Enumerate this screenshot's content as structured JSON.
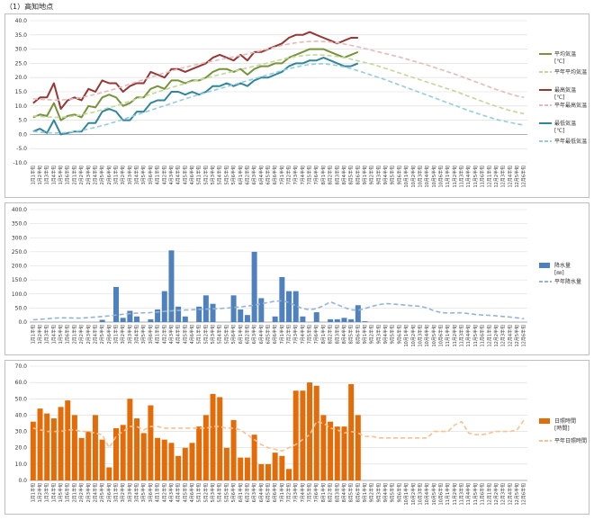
{
  "page": {
    "title": "（1）高知地点"
  },
  "xlabels": [
    "1月1半旬",
    "1月2半旬",
    "1月3半旬",
    "1月4半旬",
    "1月5半旬",
    "1月6半旬",
    "2月1半旬",
    "2月2半旬",
    "2月3半旬",
    "2月4半旬",
    "2月5半旬",
    "2月6半旬",
    "3月1半旬",
    "3月2半旬",
    "3月3半旬",
    "3月4半旬",
    "3月5半旬",
    "3月6半旬",
    "4月1半旬",
    "4月2半旬",
    "4月3半旬",
    "4月4半旬",
    "4月5半旬",
    "4月6半旬",
    "5月1半旬",
    "5月2半旬",
    "5月3半旬",
    "5月4半旬",
    "5月5半旬",
    "5月6半旬",
    "6月1半旬",
    "6月2半旬",
    "6月3半旬",
    "6月4半旬",
    "6月5半旬",
    "6月6半旬",
    "7月1半旬",
    "7月2半旬",
    "7月3半旬",
    "7月4半旬",
    "7月5半旬",
    "7月6半旬",
    "8月1半旬",
    "8月2半旬",
    "8月3半旬",
    "8月4半旬",
    "8月5半旬",
    "8月6半旬",
    "9月1半旬",
    "9月2半旬",
    "9月3半旬",
    "9月4半旬",
    "9月5半旬",
    "9月6半旬",
    "10月1半旬",
    "10月2半旬",
    "10月3半旬",
    "10月4半旬",
    "10月5半旬",
    "10月6半旬",
    "11月1半旬",
    "11月2半旬",
    "11月3半旬",
    "11月4半旬",
    "11月5半旬",
    "11月6半旬",
    "12月1半旬",
    "12月2半旬",
    "12月3半旬",
    "12月4半旬",
    "12月5半旬",
    "12月6半旬"
  ],
  "chart_data": [
    {
      "type": "line",
      "ylim": [
        -10,
        40
      ],
      "yticks": [
        "40.0",
        "35.0",
        "30.0",
        "25.0",
        "20.0",
        "15.0",
        "10.0",
        "5.0",
        "0.0",
        "-5.0",
        "-10.0"
      ],
      "series": [
        {
          "name": "平均気温\n[℃]",
          "style": "solid",
          "color": "#77933c",
          "values": [
            6,
            7,
            6.5,
            11,
            5,
            6.5,
            7,
            6,
            10,
            9.5,
            13,
            14,
            13,
            10,
            11,
            13,
            13,
            16,
            17,
            16,
            19,
            19,
            18,
            19,
            19,
            20,
            22,
            23,
            23,
            22,
            23,
            21,
            23,
            24,
            24,
            25,
            25,
            27,
            28,
            29,
            30,
            30,
            30,
            29,
            28,
            27,
            28,
            29,
            null,
            null,
            null,
            null,
            null,
            null,
            null,
            null,
            null,
            null,
            null,
            null,
            null,
            null,
            null,
            null,
            null,
            null,
            null,
            null,
            null,
            null,
            null,
            null
          ]
        },
        {
          "name": "平年平均気温",
          "style": "dash",
          "color": "#c3d69b",
          "values": [
            6.5,
            6.3,
            6.1,
            6,
            6,
            6.2,
            6.5,
            6.9,
            7.4,
            8,
            8.7,
            9.4,
            10.1,
            10.9,
            11.7,
            12.5,
            13.3,
            14.1,
            14.9,
            15.7,
            16.5,
            17.2,
            17.9,
            18.6,
            19.2,
            19.8,
            20.4,
            21,
            21.6,
            22.2,
            22.8,
            23.4,
            24,
            24.6,
            25.2,
            25.8,
            26.4,
            27,
            27.4,
            27.7,
            27.9,
            28,
            27.9,
            27.7,
            27.4,
            27,
            26.5,
            25.9,
            25.3,
            24.7,
            24,
            23.2,
            22.4,
            21.6,
            20.8,
            20,
            19.2,
            18.4,
            17.6,
            16.8,
            16,
            15.2,
            14.3,
            13.4,
            12.5,
            11.6,
            10.7,
            9.9,
            9.1,
            8.4,
            7.8,
            7.3
          ]
        },
        {
          "name": "最高気温\n[℃]",
          "style": "solid",
          "color": "#953735",
          "values": [
            11,
            13,
            13,
            18,
            9,
            12,
            13,
            12,
            16,
            15,
            19,
            18,
            18,
            15,
            17,
            18,
            18,
            22,
            21,
            20,
            23,
            23,
            22,
            23,
            24,
            25,
            27,
            28,
            27,
            26,
            28,
            26,
            29,
            29,
            30,
            31,
            32,
            34,
            35,
            35,
            36,
            35,
            34,
            33,
            32,
            33,
            34,
            34,
            null,
            null,
            null,
            null,
            null,
            null,
            null,
            null,
            null,
            null,
            null,
            null,
            null,
            null,
            null,
            null,
            null,
            null,
            null,
            null,
            null,
            null,
            null,
            null
          ]
        },
        {
          "name": "平年最高気温",
          "style": "dash",
          "color": "#e6b9b8",
          "values": [
            12.5,
            12.3,
            12.2,
            12.1,
            12.1,
            12.3,
            12.6,
            13,
            13.5,
            14.1,
            14.7,
            15.4,
            16.1,
            16.9,
            17.7,
            18.5,
            19.3,
            20.1,
            20.9,
            21.6,
            22.3,
            23,
            23.6,
            24.2,
            24.8,
            25.3,
            25.8,
            26.3,
            26.8,
            27.3,
            27.8,
            28.3,
            28.9,
            29.5,
            30.1,
            30.7,
            31.3,
            31.8,
            32.2,
            32.5,
            32.7,
            32.8,
            32.7,
            32.5,
            32.2,
            31.8,
            31.3,
            30.8,
            30.2,
            29.6,
            29,
            28.4,
            27.8,
            27.2,
            26.5,
            25.8,
            25.1,
            24.4,
            23.6,
            22.8,
            22,
            21.2,
            20.3,
            19.4,
            18.5,
            17.6,
            16.7,
            15.8,
            15,
            14.2,
            13.5,
            13
          ]
        },
        {
          "name": "最低気温\n[℃]",
          "style": "solid",
          "color": "#31859c",
          "values": [
            1,
            2,
            0.5,
            5,
            0,
            0.5,
            1,
            1,
            4,
            4,
            8,
            9,
            8,
            5,
            5,
            8,
            8,
            11,
            12,
            12,
            15,
            15,
            14,
            15,
            14,
            15,
            17,
            17,
            18,
            17,
            18,
            17,
            19,
            20,
            20,
            21,
            22,
            24,
            25,
            25,
            26,
            26,
            27,
            26,
            25,
            24,
            24,
            25,
            null,
            null,
            null,
            null,
            null,
            null,
            null,
            null,
            null,
            null,
            null,
            null,
            null,
            null,
            null,
            null,
            null,
            null,
            null,
            null,
            null,
            null,
            null,
            null
          ]
        },
        {
          "name": "平年最低気温",
          "style": "dash",
          "color": "#93cddd",
          "values": [
            1,
            0.8,
            0.6,
            0.5,
            0.5,
            0.7,
            1,
            1.4,
            1.9,
            2.5,
            3.1,
            3.8,
            4.5,
            5.3,
            6.1,
            6.9,
            7.7,
            8.5,
            9.3,
            10.1,
            10.9,
            11.7,
            12.5,
            13.3,
            14,
            14.7,
            15.4,
            16.1,
            16.8,
            17.5,
            18.2,
            18.9,
            19.6,
            20.3,
            21,
            21.7,
            22.4,
            23.1,
            23.7,
            24.2,
            24.6,
            24.8,
            24.8,
            24.6,
            24.2,
            23.7,
            23.1,
            22.4,
            21.6,
            20.8,
            20,
            19.2,
            18.3,
            17.4,
            16.5,
            15.6,
            14.7,
            13.8,
            12.9,
            12,
            11.1,
            10.2,
            9.3,
            8.4,
            7.6,
            6.8,
            6,
            5.3,
            4.7,
            4.2,
            3.7,
            3.3
          ]
        }
      ]
    },
    {
      "type": "bar",
      "ylim": [
        0,
        400
      ],
      "yticks": [
        "400.0",
        "350.0",
        "300.0",
        "250.0",
        "200.0",
        "150.0",
        "100.0",
        "50.0",
        "0.0"
      ],
      "series": [
        {
          "name": "降水量\n[㎜]",
          "style": "bar",
          "color": "#4f81bd",
          "values": [
            0,
            0,
            0,
            0,
            0,
            0,
            0,
            0,
            0,
            0,
            8,
            0,
            125,
            15,
            40,
            20,
            0,
            10,
            45,
            110,
            255,
            55,
            20,
            0,
            55,
            95,
            65,
            0,
            0,
            95,
            45,
            25,
            250,
            85,
            0,
            20,
            160,
            110,
            110,
            20,
            0,
            35,
            0,
            10,
            10,
            15,
            10,
            60,
            3,
            0,
            0,
            0,
            0,
            0,
            0,
            0,
            0,
            0,
            0,
            0,
            0,
            0,
            0,
            0,
            0,
            0,
            0,
            0,
            0,
            0,
            0,
            0
          ]
        },
        {
          "name": "平年降水量",
          "style": "dash",
          "color": "#95b3d7",
          "values": [
            8,
            10,
            12,
            14,
            15,
            15,
            14,
            14,
            16,
            18,
            20,
            22,
            25,
            28,
            30,
            32,
            33,
            34,
            36,
            38,
            40,
            42,
            43,
            44,
            45,
            46,
            47,
            48,
            50,
            52,
            54,
            57,
            60,
            65,
            70,
            74,
            76,
            70,
            58,
            48,
            44,
            48,
            58,
            72,
            62,
            52,
            44,
            42,
            48,
            56,
            62,
            66,
            64,
            62,
            60,
            58,
            56,
            50,
            40,
            34,
            32,
            33,
            33,
            30,
            27,
            25,
            24,
            22,
            20,
            18,
            15,
            12
          ]
        }
      ]
    },
    {
      "type": "bar",
      "ylim": [
        0,
        70
      ],
      "yticks": [
        "70.0",
        "60.0",
        "50.0",
        "40.0",
        "30.0",
        "20.0",
        "10.0",
        "0.0"
      ],
      "series": [
        {
          "name": "日照時間\n[時間]",
          "style": "bar",
          "color": "#e36c09",
          "values": [
            36,
            44,
            41,
            38,
            45,
            49,
            40,
            26,
            30,
            40,
            25,
            8,
            32,
            34,
            50,
            38,
            29,
            46,
            26,
            25,
            23,
            15,
            20,
            23,
            33,
            40,
            53,
            51,
            20,
            37,
            14,
            14,
            28,
            10,
            10,
            17,
            15,
            7,
            55,
            55,
            60,
            58,
            40,
            36,
            33,
            33,
            59,
            40,
            null,
            null,
            null,
            null,
            null,
            null,
            null,
            null,
            null,
            null,
            null,
            null,
            null,
            null,
            null,
            null,
            null,
            null,
            null,
            null,
            null,
            null,
            null,
            null
          ]
        },
        {
          "name": "平年日照時間",
          "style": "dash",
          "color": "#fac090",
          "values": [
            32,
            31,
            30,
            30,
            30,
            31,
            31,
            30,
            30,
            29,
            28,
            20,
            27,
            30,
            33,
            33,
            31,
            33,
            33,
            32,
            32,
            32,
            32,
            32,
            32,
            32,
            33,
            33,
            32,
            32,
            31,
            28,
            25,
            22,
            20,
            19,
            18,
            20,
            22,
            25,
            28,
            36,
            35,
            32,
            31,
            29,
            30,
            29,
            27,
            27,
            26,
            26,
            26,
            26,
            26,
            26,
            26,
            26,
            30,
            30,
            30,
            34,
            36,
            29,
            28,
            28,
            29,
            30,
            30,
            30,
            31,
            37
          ]
        }
      ]
    }
  ]
}
